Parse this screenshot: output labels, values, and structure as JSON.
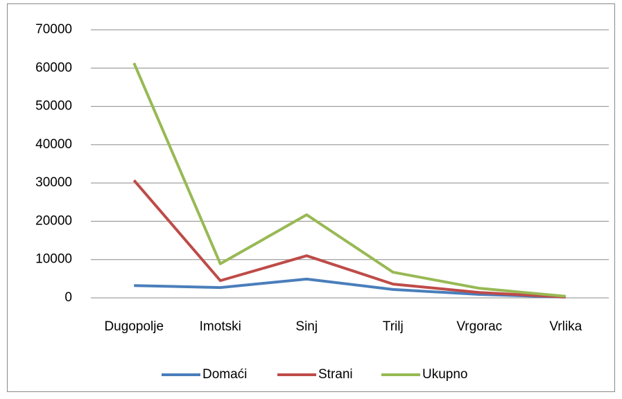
{
  "chart_data": {
    "type": "line",
    "categories": [
      "Dugopolje",
      "Imotski",
      "Sinj",
      "Trilj",
      "Vrgorac",
      "Vrlika"
    ],
    "series": [
      {
        "name": "Domaći",
        "color": "#4a7ebb",
        "values": [
          3200,
          2700,
          4900,
          2200,
          900,
          200
        ]
      },
      {
        "name": "Strani",
        "color": "#be4b48",
        "values": [
          30700,
          4500,
          11000,
          3600,
          1400,
          200
        ]
      },
      {
        "name": "Ukupno",
        "color": "#98b954",
        "values": [
          61300,
          8900,
          21700,
          6700,
          2500,
          400
        ]
      }
    ],
    "ylim": [
      0,
      70000
    ],
    "yticks": [
      0,
      10000,
      20000,
      30000,
      40000,
      50000,
      60000,
      70000
    ],
    "grid": true,
    "legend": "bottom"
  }
}
